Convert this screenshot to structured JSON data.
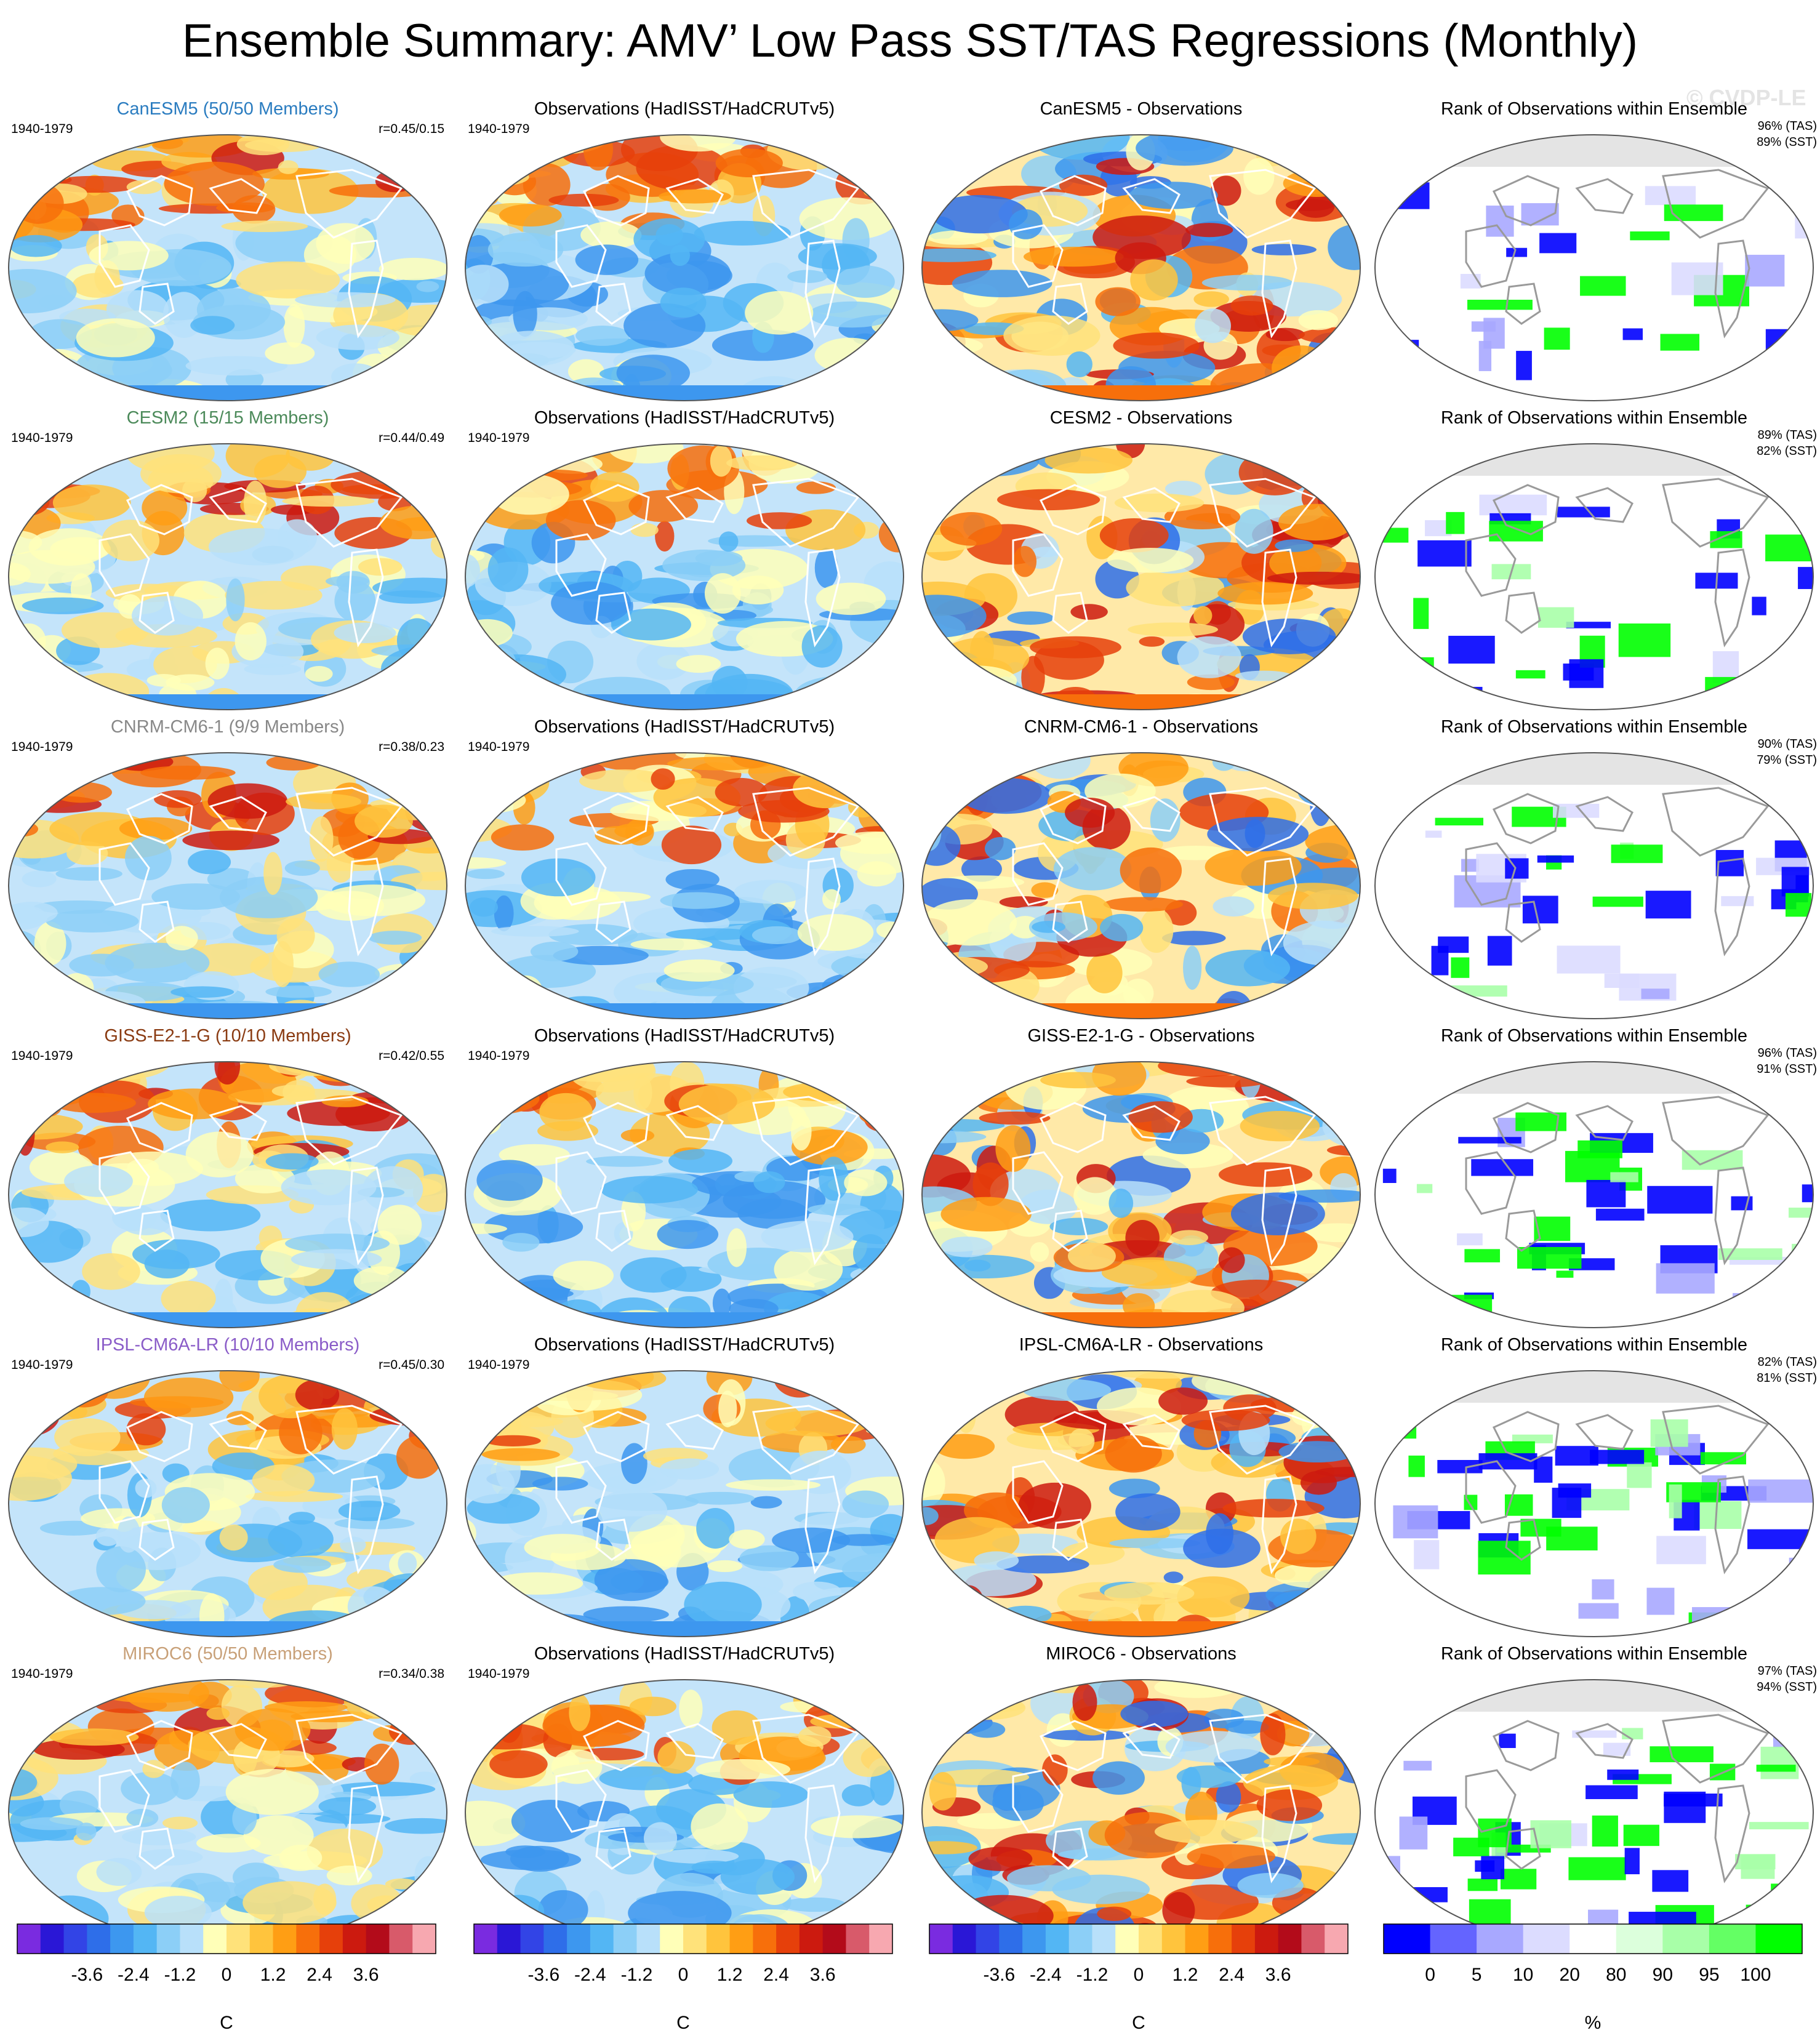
{
  "title": "Ensemble Summary: AMV’ Low Pass SST/TAS Regressions (Monthly)",
  "watermark": "© CVDP-LE",
  "obs_title": "Observations (HadISST/HadCRUTv5)",
  "rank_title": "Rank of Observations within Ensemble",
  "period": "1940-1979",
  "rows": [
    {
      "model_title": "CanESM5 (50/50 Members)",
      "title_color": "#2a7cc0",
      "corr": "r=0.45/0.15",
      "diff_title": "CanESM5 - Observations",
      "rank_tas": "96% (TAS)",
      "rank_sst": "89% (SST)"
    },
    {
      "model_title": "CESM2 (15/15 Members)",
      "title_color": "#4c8a5a",
      "corr": "r=0.44/0.49",
      "diff_title": "CESM2 - Observations",
      "rank_tas": "89% (TAS)",
      "rank_sst": "82% (SST)"
    },
    {
      "model_title": "CNRM-CM6-1 (9/9 Members)",
      "title_color": "#888888",
      "corr": "r=0.38/0.23",
      "diff_title": "CNRM-CM6-1 - Observations",
      "rank_tas": "90% (TAS)",
      "rank_sst": "79% (SST)"
    },
    {
      "model_title": "GISS-E2-1-G (10/10 Members)",
      "title_color": "#8a3b12",
      "corr": "r=0.42/0.55",
      "diff_title": "GISS-E2-1-G - Observations",
      "rank_tas": "96% (TAS)",
      "rank_sst": "91% (SST)"
    },
    {
      "model_title": "IPSL-CM6A-LR (10/10 Members)",
      "title_color": "#8a5cc8",
      "corr": "r=0.45/0.30",
      "diff_title": "IPSL-CM6A-LR - Observations",
      "rank_tas": "82% (TAS)",
      "rank_sst": "81% (SST)"
    },
    {
      "model_title": "MIROC6 (50/50 Members)",
      "title_color": "#c8a078",
      "corr": "r=0.34/0.38",
      "diff_title": "MIROC6 - Observations",
      "rank_tas": "97% (TAS)",
      "rank_sst": "94% (SST)"
    }
  ],
  "colorbar_temp": {
    "unit": "C",
    "labels": [
      "-3.6",
      "-2.4",
      "-1.2",
      "0",
      "1.2",
      "2.4",
      "3.6"
    ],
    "colors": [
      "#7a2be0",
      "#2a17d6",
      "#3244e6",
      "#2e6ee9",
      "#3d97ef",
      "#53b6f4",
      "#8ccff7",
      "#b8e0fa",
      "#ffffb8",
      "#ffe27a",
      "#ffc43d",
      "#ff9e14",
      "#f76f0b",
      "#e6400b",
      "#cc1a0f",
      "#b30b1a",
      "#d85a6a",
      "#f7a8b0"
    ]
  },
  "colorbar_rank": {
    "unit": "%",
    "labels": [
      "0",
      "5",
      "10",
      "20",
      "80",
      "90",
      "95",
      "100"
    ],
    "colors": [
      "#0000ff",
      "#6464ff",
      "#a8a8ff",
      "#dcdcff",
      "#ffffff",
      "#dcffdc",
      "#a8ffa8",
      "#64ff64",
      "#00ff00"
    ]
  },
  "map_colors": {
    "cool": "#b8e0fa",
    "warm": "#ffffb8",
    "land_outline": "#ffffff",
    "coast_outline": "#9a9a9a",
    "missing": "#e4e4e4",
    "rank_low": "#0000ff",
    "rank_high": "#00ff00"
  }
}
